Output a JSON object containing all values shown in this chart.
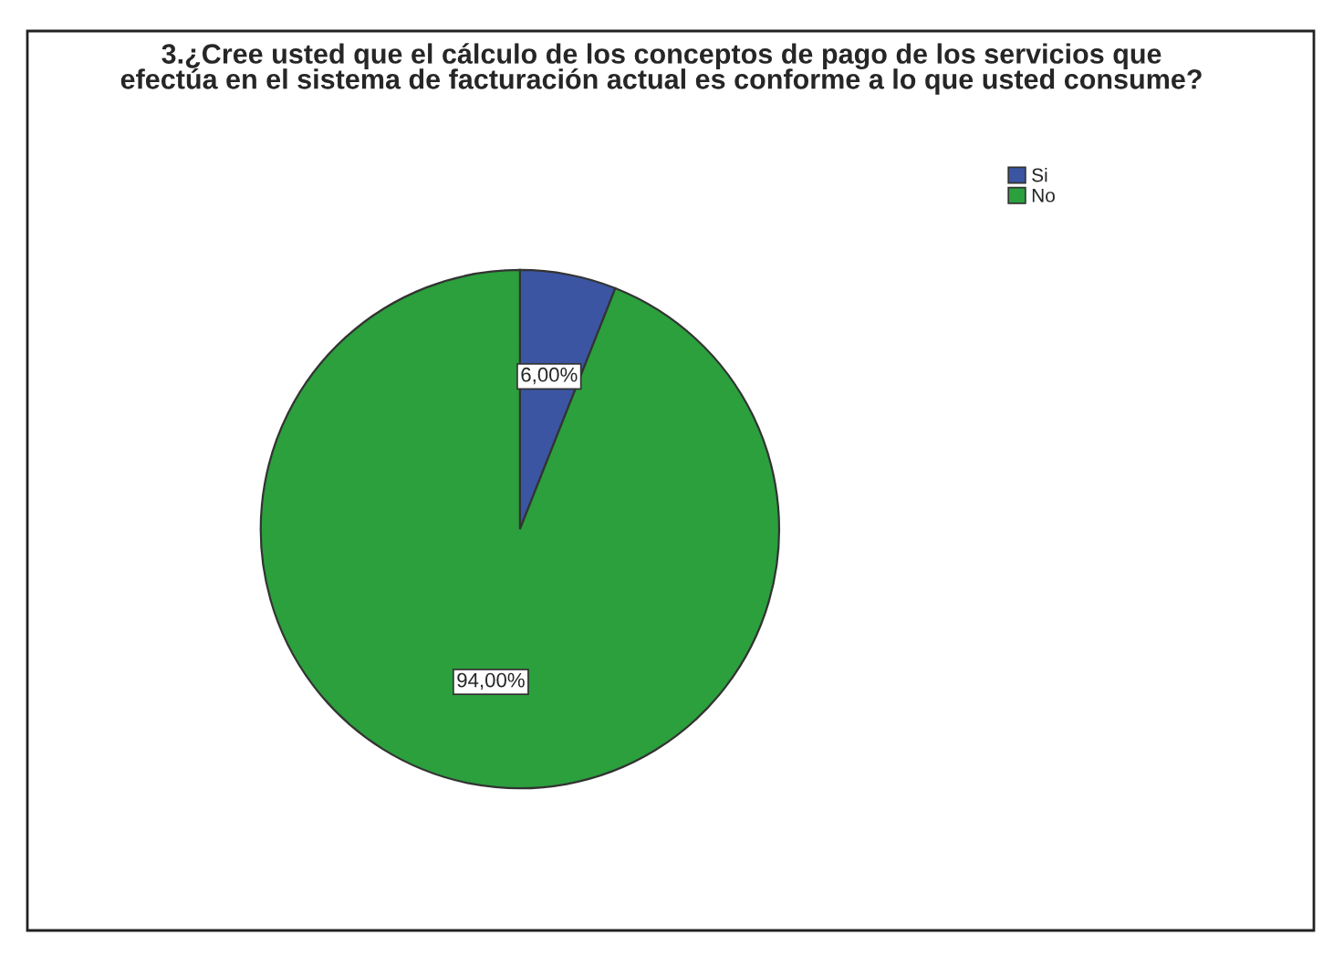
{
  "chart_data": {
    "type": "pie",
    "title": "3.¿Cree usted que el cálculo de los conceptos de pago de los servicios que efectúa en el sistema de facturación actual es conforme a lo que usted consume?",
    "categories": [
      "Si",
      "No"
    ],
    "values": [
      6,
      94
    ],
    "colors": [
      "#3b55a3",
      "#2ba03d"
    ],
    "value_labels": [
      "6,00%",
      "94,00%"
    ],
    "legend": "top right"
  }
}
